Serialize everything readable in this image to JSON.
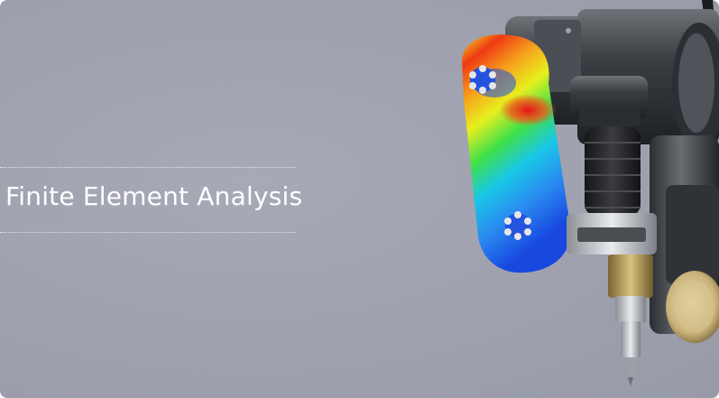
{
  "banner": {
    "title": "Finite Element Analysis",
    "illustration_icon": "robot-arm-fea-stress-plot-icon",
    "colors": {
      "background": "#9fa1ae",
      "title": "#ffffff",
      "rule": "#e4e5ea"
    }
  }
}
